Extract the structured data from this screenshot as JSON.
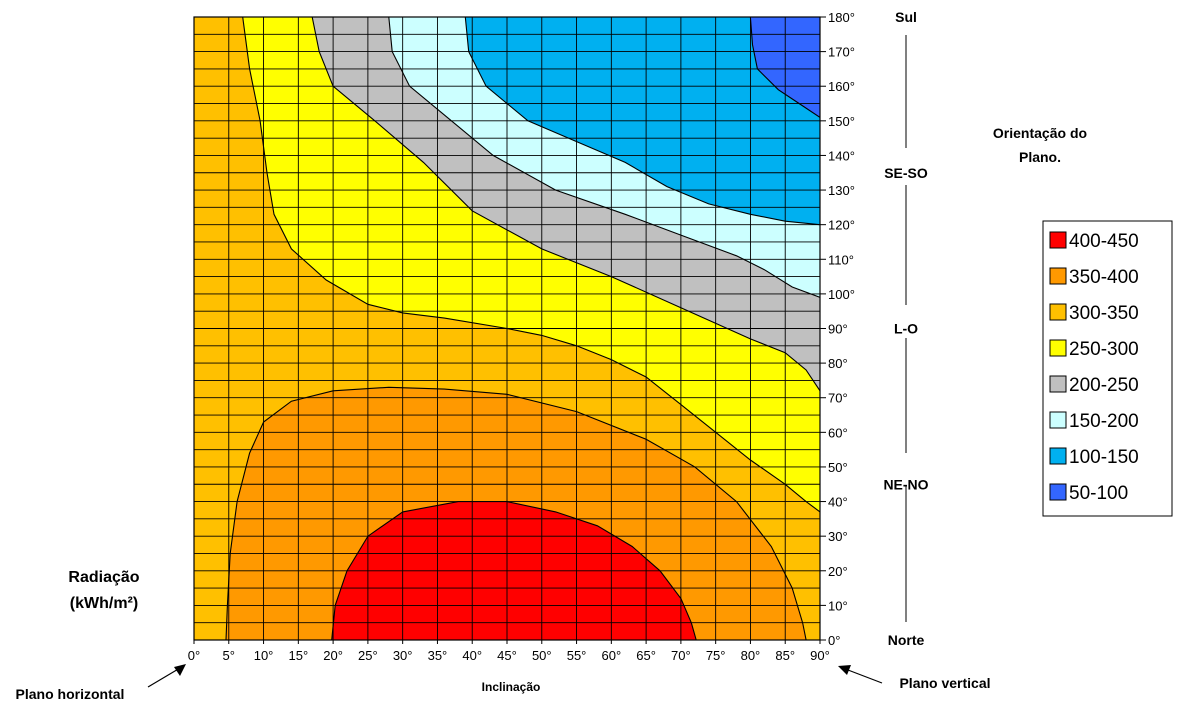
{
  "chart_data": {
    "type": "heatmap",
    "subtype": "filled-contour",
    "title": "",
    "xlabel": "Inclinação",
    "ylabel": "",
    "xlim": [
      0,
      90
    ],
    "ylim": [
      0,
      180
    ],
    "x_ticks": [
      0,
      5,
      10,
      15,
      20,
      25,
      30,
      35,
      40,
      45,
      50,
      55,
      60,
      65,
      70,
      75,
      80,
      85,
      90
    ],
    "y_ticks": [
      0,
      10,
      20,
      30,
      40,
      50,
      60,
      70,
      80,
      90,
      100,
      110,
      120,
      130,
      140,
      150,
      160,
      170,
      180
    ],
    "tick_suffix": "°",
    "grid": true,
    "legend_position": "right",
    "levels": [
      {
        "label": "400-450",
        "color": "#ff0000"
      },
      {
        "label": "350-400",
        "color": "#ff9900"
      },
      {
        "label": "300-350",
        "color": "#ffc000"
      },
      {
        "label": "250-300",
        "color": "#ffff00"
      },
      {
        "label": "200-250",
        "color": "#c0c0c0"
      },
      {
        "label": "150-200",
        "color": "#ccffff"
      },
      {
        "label": "100-150",
        "color": "#00b0f0"
      },
      {
        "label": "50-100",
        "color": "#3366ff"
      }
    ],
    "contours": [
      {
        "level": 400,
        "points": [
          [
            19.8,
            0
          ],
          [
            20.3,
            10
          ],
          [
            22,
            20
          ],
          [
            25,
            30
          ],
          [
            30,
            37
          ],
          [
            38,
            40
          ],
          [
            45,
            40
          ],
          [
            52,
            37
          ],
          [
            58,
            33
          ],
          [
            63,
            27
          ],
          [
            67,
            20
          ],
          [
            70,
            12
          ],
          [
            71.5,
            5
          ],
          [
            72.2,
            0
          ]
        ]
      },
      {
        "level": 350,
        "points": [
          [
            4.6,
            0
          ],
          [
            4.8,
            10
          ],
          [
            5.2,
            25
          ],
          [
            6.2,
            40
          ],
          [
            8,
            54
          ],
          [
            10,
            63
          ],
          [
            14,
            69
          ],
          [
            20,
            72
          ],
          [
            28,
            73
          ],
          [
            36,
            72.5
          ],
          [
            45,
            71
          ],
          [
            55,
            66
          ],
          [
            65,
            58
          ],
          [
            72,
            50
          ],
          [
            78,
            40
          ],
          [
            83,
            27
          ],
          [
            86,
            15
          ],
          [
            87.5,
            5
          ],
          [
            88,
            0
          ]
        ]
      },
      {
        "level": 300,
        "points": [
          [
            7,
            180
          ],
          [
            8,
            165
          ],
          [
            9.5,
            150
          ],
          [
            10.5,
            135
          ],
          [
            11.5,
            123
          ],
          [
            14,
            113
          ],
          [
            19,
            104
          ],
          [
            25,
            97
          ],
          [
            30,
            94.5
          ],
          [
            36,
            93
          ],
          [
            45,
            90
          ],
          [
            50,
            88
          ],
          [
            55,
            85
          ],
          [
            60,
            81
          ],
          [
            65,
            76
          ],
          [
            70,
            68
          ],
          [
            75,
            60
          ],
          [
            80,
            52
          ],
          [
            85,
            45
          ],
          [
            88,
            40
          ],
          [
            90,
            37
          ]
        ]
      },
      {
        "level": 250,
        "points": [
          [
            17,
            180
          ],
          [
            18,
            170
          ],
          [
            20,
            160
          ],
          [
            26,
            150
          ],
          [
            33,
            138
          ],
          [
            40,
            124
          ],
          [
            50,
            113
          ],
          [
            60,
            105
          ],
          [
            70,
            96
          ],
          [
            80,
            87
          ],
          [
            85,
            83
          ],
          [
            88,
            78
          ],
          [
            90,
            72
          ]
        ]
      },
      {
        "level": 200,
        "points": [
          [
            28,
            180
          ],
          [
            28.5,
            170
          ],
          [
            31,
            160
          ],
          [
            37,
            150
          ],
          [
            43,
            140
          ],
          [
            52,
            130
          ],
          [
            62,
            123
          ],
          [
            70,
            117
          ],
          [
            78,
            111
          ],
          [
            82,
            107
          ],
          [
            86,
            102
          ],
          [
            90,
            99
          ]
        ]
      },
      {
        "level": 150,
        "points": [
          [
            39,
            180
          ],
          [
            39.5,
            170
          ],
          [
            42,
            160
          ],
          [
            48,
            150
          ],
          [
            55,
            144
          ],
          [
            62,
            138
          ],
          [
            68,
            131
          ],
          [
            74,
            126
          ],
          [
            80,
            123
          ],
          [
            85,
            121
          ],
          [
            90,
            120
          ]
        ]
      },
      {
        "level": 100,
        "points": [
          [
            80,
            180
          ],
          [
            80.3,
            172
          ],
          [
            81,
            165
          ],
          [
            84,
            159
          ],
          [
            87,
            155
          ],
          [
            90,
            151
          ]
        ]
      }
    ],
    "annotations": {
      "left_label_line1": "Radiação",
      "left_label_line2": "(kWh/m²)",
      "plano_horizontal": "Plano horizontal",
      "plano_vertical": "Plano vertical",
      "orientation_title_line1": "Orientação do",
      "orientation_title_line2": "Plano.",
      "orientations": [
        {
          "label": "Sul",
          "y": 180
        },
        {
          "label": "SE-SO",
          "y": 135
        },
        {
          "label": "L-O",
          "y": 90
        },
        {
          "label": "NE-NO",
          "y": 45
        },
        {
          "label": "Norte",
          "y": 0
        }
      ]
    }
  }
}
